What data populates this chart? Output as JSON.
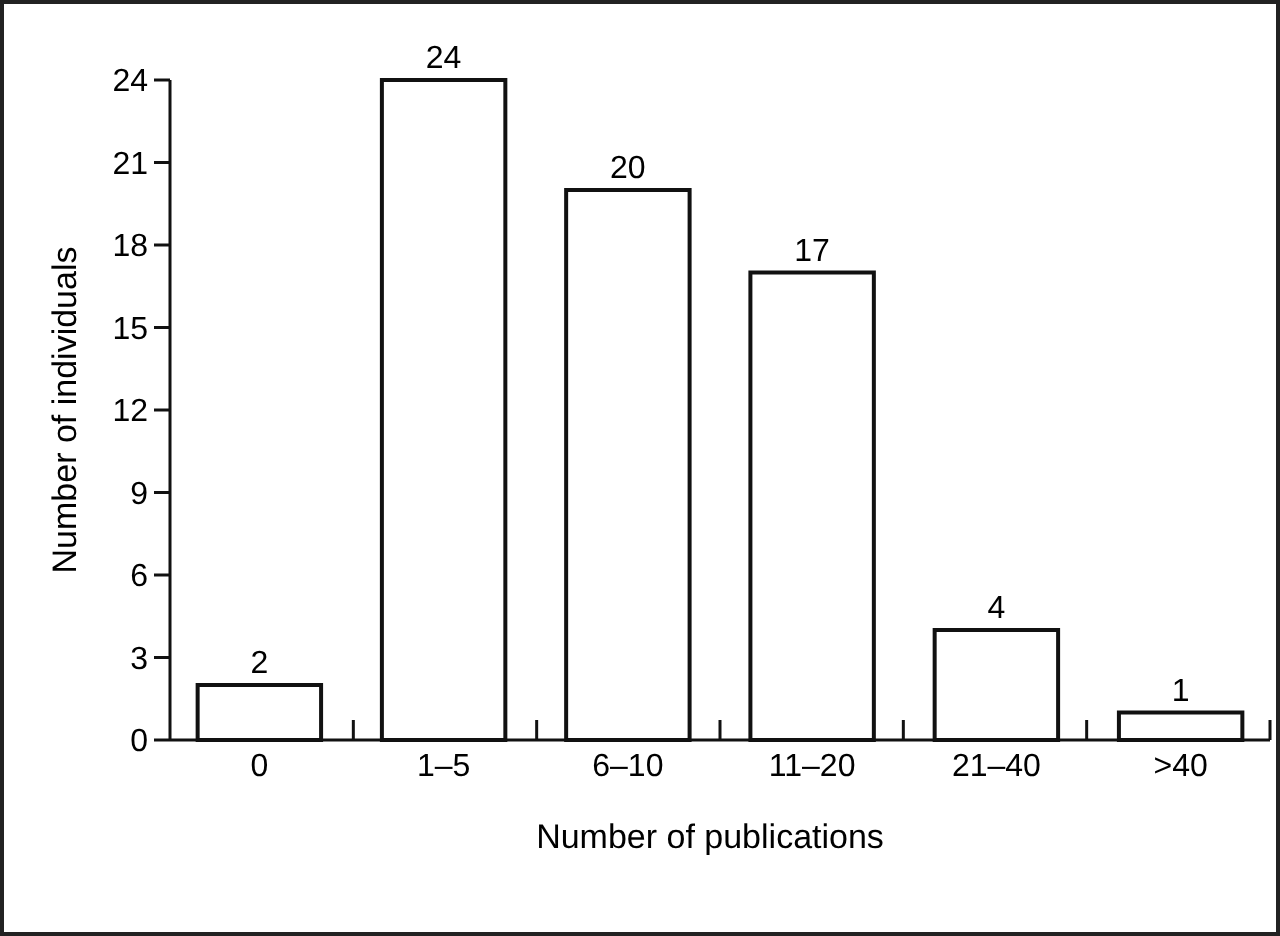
{
  "chart_data": {
    "type": "bar",
    "xlabel": "Number of publications",
    "ylabel": "Number of individuals",
    "categories": [
      "0",
      "1–5",
      "6–10",
      "11–20",
      "21–40",
      ">40"
    ],
    "values": [
      2,
      24,
      20,
      17,
      4,
      1
    ],
    "color": "#ffffff",
    "ylim": [
      0,
      24
    ],
    "yticks": [
      0,
      3,
      6,
      9,
      12,
      15,
      18,
      21,
      24
    ],
    "grid": false,
    "data_labels": true
  }
}
